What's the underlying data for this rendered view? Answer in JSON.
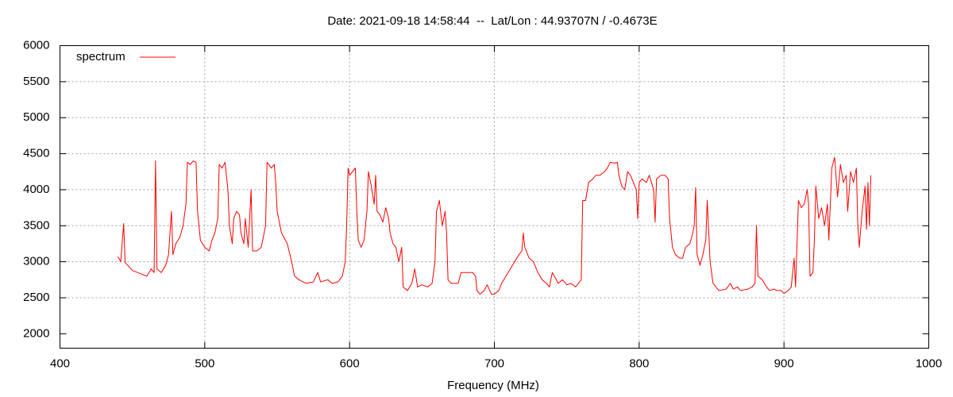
{
  "chart_data": {
    "type": "line",
    "title": "Date: 2021-09-18 14:58:44  --  Lat/Lon : 44.93707N / -0.4673E",
    "x_label": "Frequency (MHz)",
    "xlim": [
      400,
      1000
    ],
    "xticks": [
      400,
      500,
      600,
      700,
      800,
      900,
      1000
    ],
    "ylim": [
      1800,
      6000
    ],
    "yticks": [
      2000,
      2500,
      3000,
      3500,
      4000,
      4500,
      5000,
      5500,
      6000
    ],
    "grid": true,
    "legend": "top-left",
    "x": [
      440,
      442,
      444,
      445,
      450,
      455,
      460,
      463,
      465,
      466,
      467,
      470,
      473,
      475,
      477,
      478,
      480,
      483,
      485,
      487,
      488,
      490,
      492,
      494,
      495,
      497,
      500,
      503,
      505,
      507,
      509,
      510,
      512,
      514,
      516,
      517,
      519,
      520,
      522,
      524,
      525,
      527,
      528,
      530,
      532,
      533,
      536,
      539,
      542,
      543,
      546,
      548,
      549,
      550,
      553,
      557,
      560,
      562,
      565,
      570,
      575,
      578,
      580,
      585,
      588,
      592,
      595,
      597,
      598,
      599,
      600,
      602,
      604,
      605,
      606,
      608,
      610,
      612,
      613,
      615,
      617,
      618,
      619,
      621,
      623,
      625,
      627,
      628,
      630,
      632,
      634,
      636,
      637,
      640,
      643,
      645,
      647,
      650,
      654,
      657,
      659,
      660,
      662,
      664,
      666,
      667,
      668,
      670,
      675,
      677,
      680,
      685,
      687,
      688,
      690,
      693,
      695,
      698,
      700,
      703,
      705,
      708,
      711,
      714,
      717,
      719,
      720,
      721,
      724,
      727,
      730,
      733,
      736,
      738,
      740,
      742,
      744,
      747,
      750,
      753,
      756,
      758,
      760,
      761,
      763,
      765,
      768,
      770,
      773,
      776,
      778,
      780,
      783,
      785,
      786,
      788,
      790,
      792,
      794,
      796,
      798,
      799,
      800,
      802,
      805,
      807,
      810,
      811,
      812,
      815,
      818,
      820,
      821,
      823,
      825,
      828,
      830,
      832,
      835,
      837,
      838,
      839,
      840,
      842,
      844,
      846,
      847,
      849,
      851,
      853,
      855,
      860,
      863,
      865,
      868,
      870,
      875,
      878,
      880,
      881,
      882,
      885,
      888,
      890,
      893,
      895,
      898,
      900,
      903,
      905,
      907,
      908,
      910,
      912,
      914,
      916,
      917,
      918,
      920,
      921,
      922,
      924,
      926,
      928,
      930,
      931,
      933,
      935,
      937,
      939,
      941,
      943,
      944,
      946,
      948,
      950,
      951,
      952,
      954,
      956,
      957,
      958,
      959,
      960
    ],
    "series": [
      {
        "name": "spectrum",
        "color": "#ff0000",
        "values": [
          3070,
          3000,
          3530,
          2990,
          2880,
          2840,
          2800,
          2900,
          2850,
          4400,
          2900,
          2850,
          2950,
          3100,
          3700,
          3100,
          3250,
          3350,
          3500,
          3800,
          4380,
          4350,
          4400,
          4380,
          3700,
          3300,
          3200,
          3150,
          3300,
          3400,
          3600,
          4350,
          4300,
          4380,
          4000,
          3500,
          3250,
          3600,
          3700,
          3650,
          3400,
          3250,
          3600,
          3200,
          4000,
          3150,
          3150,
          3200,
          3500,
          4380,
          4300,
          4350,
          4100,
          3700,
          3400,
          3250,
          3000,
          2800,
          2750,
          2700,
          2720,
          2850,
          2720,
          2750,
          2700,
          2720,
          2800,
          3000,
          3500,
          4300,
          4200,
          4250,
          4300,
          3700,
          3300,
          3200,
          3300,
          3700,
          4250,
          4050,
          3800,
          4200,
          3700,
          3650,
          3550,
          3750,
          3600,
          3400,
          3250,
          3200,
          3000,
          3200,
          2650,
          2600,
          2700,
          2900,
          2650,
          2680,
          2650,
          2700,
          3000,
          3700,
          3850,
          3500,
          3700,
          3400,
          2750,
          2700,
          2700,
          2850,
          2850,
          2850,
          2800,
          2600,
          2550,
          2600,
          2680,
          2550,
          2550,
          2600,
          2700,
          2800,
          2900,
          3000,
          3100,
          3150,
          3400,
          3200,
          3050,
          3000,
          2850,
          2750,
          2700,
          2650,
          2850,
          2780,
          2700,
          2750,
          2680,
          2700,
          2650,
          2700,
          2750,
          3850,
          3850,
          4100,
          4150,
          4200,
          4200,
          4250,
          4300,
          4380,
          4370,
          4380,
          4200,
          4050,
          4000,
          4250,
          4200,
          4100,
          4000,
          3600,
          4100,
          4150,
          4100,
          4200,
          4000,
          3550,
          4150,
          4200,
          4200,
          4150,
          3600,
          3200,
          3100,
          3050,
          3050,
          3200,
          3250,
          3400,
          3500,
          4030,
          3100,
          2950,
          3100,
          3300,
          3850,
          3000,
          2700,
          2650,
          2600,
          2620,
          2700,
          2620,
          2650,
          2600,
          2620,
          2650,
          2700,
          3500,
          2800,
          2750,
          2650,
          2600,
          2620,
          2600,
          2600,
          2560,
          2600,
          2650,
          3050,
          2650,
          3850,
          3750,
          3800,
          4000,
          3800,
          2800,
          2850,
          3300,
          4050,
          3600,
          3750,
          3500,
          3800,
          3300,
          4300,
          4450,
          3900,
          4350,
          4100,
          4200,
          3700,
          4250,
          4100,
          4300,
          3500,
          3200,
          3700,
          4050,
          3450,
          4100,
          3500,
          4200
        ]
      }
    ]
  }
}
